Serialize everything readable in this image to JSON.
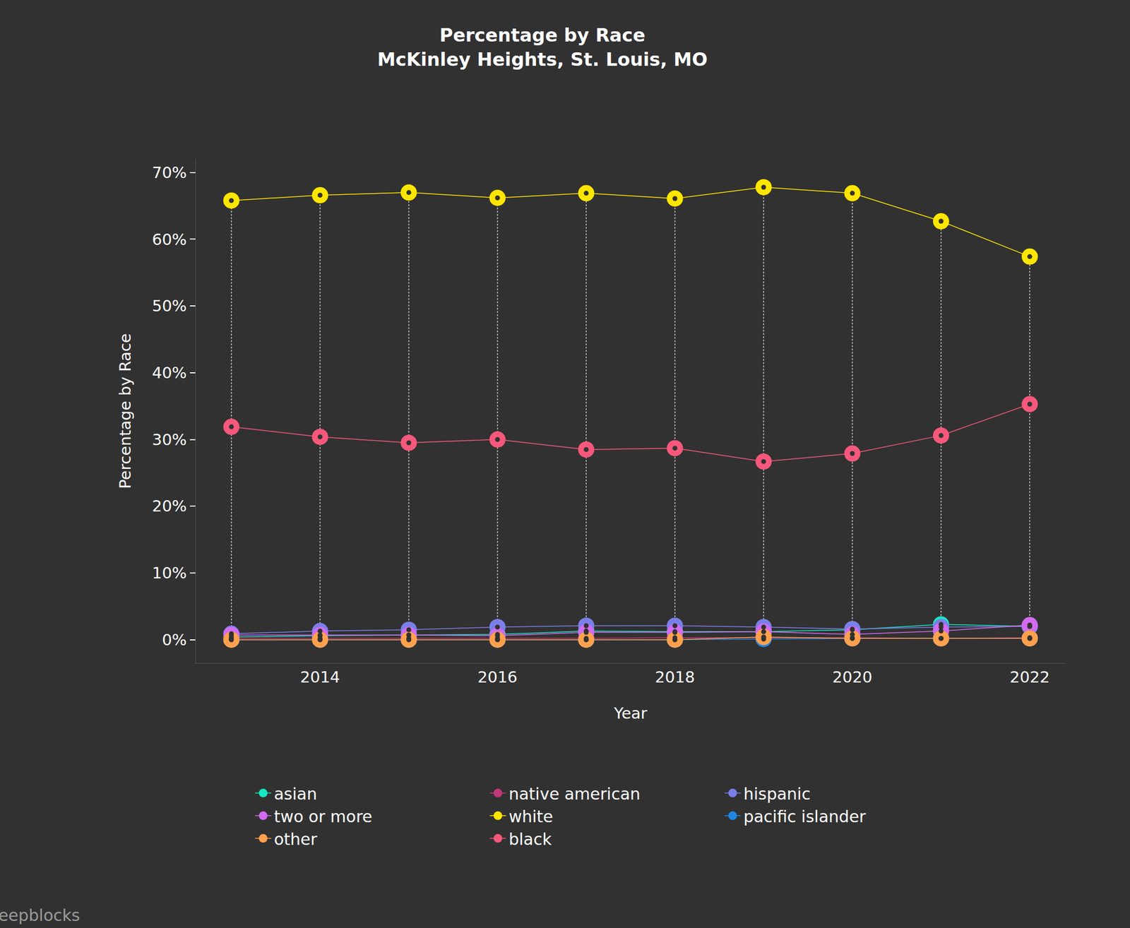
{
  "chart_data": {
    "type": "line",
    "title": "Percentage by Race\nMcKinley Heights, St. Louis, MO",
    "x_label": "Year",
    "y_label": "Percentage by Race",
    "x": [
      2013,
      2014,
      2015,
      2016,
      2017,
      2018,
      2019,
      2020,
      2021,
      2022
    ],
    "series": [
      {
        "name": "asian",
        "color": "#19e6c4",
        "values": [
          0.4,
          0.6,
          0.7,
          0.8,
          1.3,
          1.2,
          1.2,
          1.5,
          2.3,
          2.0
        ]
      },
      {
        "name": "native american",
        "color": "#c2367a",
        "values": [
          0.2,
          0.2,
          0.2,
          0.2,
          0.2,
          0.3,
          0.3,
          0.3,
          0.2,
          0.3
        ]
      },
      {
        "name": "hispanic",
        "color": "#7b7fe8",
        "values": [
          0.9,
          1.3,
          1.5,
          1.9,
          2.1,
          2.1,
          1.9,
          1.6,
          1.9,
          2.0
        ]
      },
      {
        "name": "two or more",
        "color": "#d26bf0",
        "values": [
          0.7,
          0.7,
          0.7,
          0.6,
          1.1,
          1.1,
          1.2,
          0.8,
          1.3,
          2.2
        ]
      },
      {
        "name": "white",
        "color": "#ffe600",
        "values": [
          65.8,
          66.6,
          67.0,
          66.2,
          66.9,
          66.1,
          67.8,
          66.9,
          62.7,
          57.4
        ]
      },
      {
        "name": "pacific islander",
        "color": "#1e88e5",
        "values": [
          0.0,
          0.0,
          0.0,
          0.0,
          0.0,
          0.0,
          0.1,
          0.2,
          0.2,
          0.2
        ]
      },
      {
        "name": "other",
        "color": "#ffa04d",
        "values": [
          0.0,
          0.0,
          0.0,
          0.0,
          0.0,
          0.0,
          0.4,
          0.2,
          0.2,
          0.2
        ]
      },
      {
        "name": "black",
        "color": "#f5587a",
        "values": [
          31.9,
          30.4,
          29.5,
          30.0,
          28.5,
          28.7,
          26.7,
          27.9,
          30.6,
          35.3
        ]
      }
    ],
    "xlim": [
      2012.6,
      2022.4
    ],
    "xticks": [
      2014,
      2016,
      2018,
      2020,
      2022
    ],
    "ylim": [
      -3.5,
      72
    ],
    "yticks": [
      {
        "value": 0,
        "label": "0%"
      },
      {
        "value": 10,
        "label": "10%"
      },
      {
        "value": 20,
        "label": "20%"
      },
      {
        "value": 30,
        "label": "30%"
      },
      {
        "value": 40,
        "label": "40%"
      },
      {
        "value": 50,
        "label": "50%"
      },
      {
        "value": 60,
        "label": "60%"
      },
      {
        "value": 70,
        "label": "70%"
      }
    ],
    "grid": false,
    "legend": "bottom",
    "marker": "circle",
    "annotations": [
      {
        "text": "deepblocks"
      }
    ]
  }
}
